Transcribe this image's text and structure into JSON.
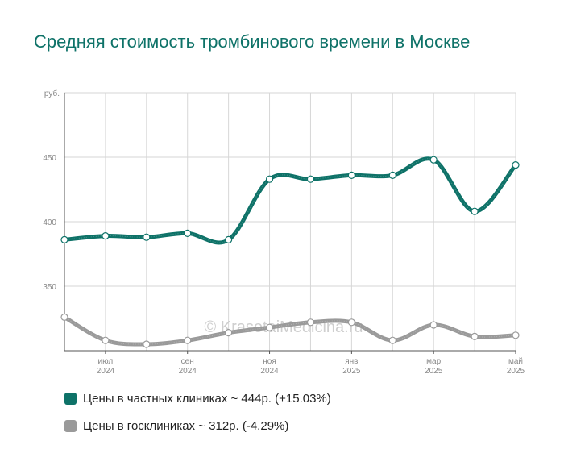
{
  "chart_data": {
    "type": "line",
    "title": "Средняя стоимость тромбинового времени в Москве",
    "ylabel": "руб.",
    "ylim": [
      300,
      500
    ],
    "yticks": [
      350,
      400,
      450
    ],
    "x_tick_labels": [
      {
        "month": "июл",
        "year": "2024"
      },
      {
        "month": "сен",
        "year": "2024"
      },
      {
        "month": "ноя",
        "year": "2024"
      },
      {
        "month": "янв",
        "year": "2025"
      },
      {
        "month": "мар",
        "year": "2025"
      },
      {
        "month": "май",
        "year": "2025"
      }
    ],
    "x": [
      "2024-06",
      "2024-07",
      "2024-08",
      "2024-09",
      "2024-10",
      "2024-11",
      "2024-12",
      "2025-01",
      "2025-02",
      "2025-03",
      "2025-04",
      "2025-05"
    ],
    "grid": true,
    "watermark": "© KrasotaiMedicina.ru",
    "series": [
      {
        "name": "Цены в частных клиниках ~ 444р. (+15.03%)",
        "color": "#0e7268",
        "values": [
          386,
          389,
          388,
          391,
          386,
          433,
          433,
          436,
          436,
          448,
          408,
          444
        ]
      },
      {
        "name": "Цены в госклиниках ~ 312р. (-4.29%)",
        "color": "#9a9a9a",
        "values": [
          326,
          308,
          305,
          308,
          314,
          318,
          322,
          322,
          308,
          320,
          311,
          312
        ]
      }
    ]
  }
}
